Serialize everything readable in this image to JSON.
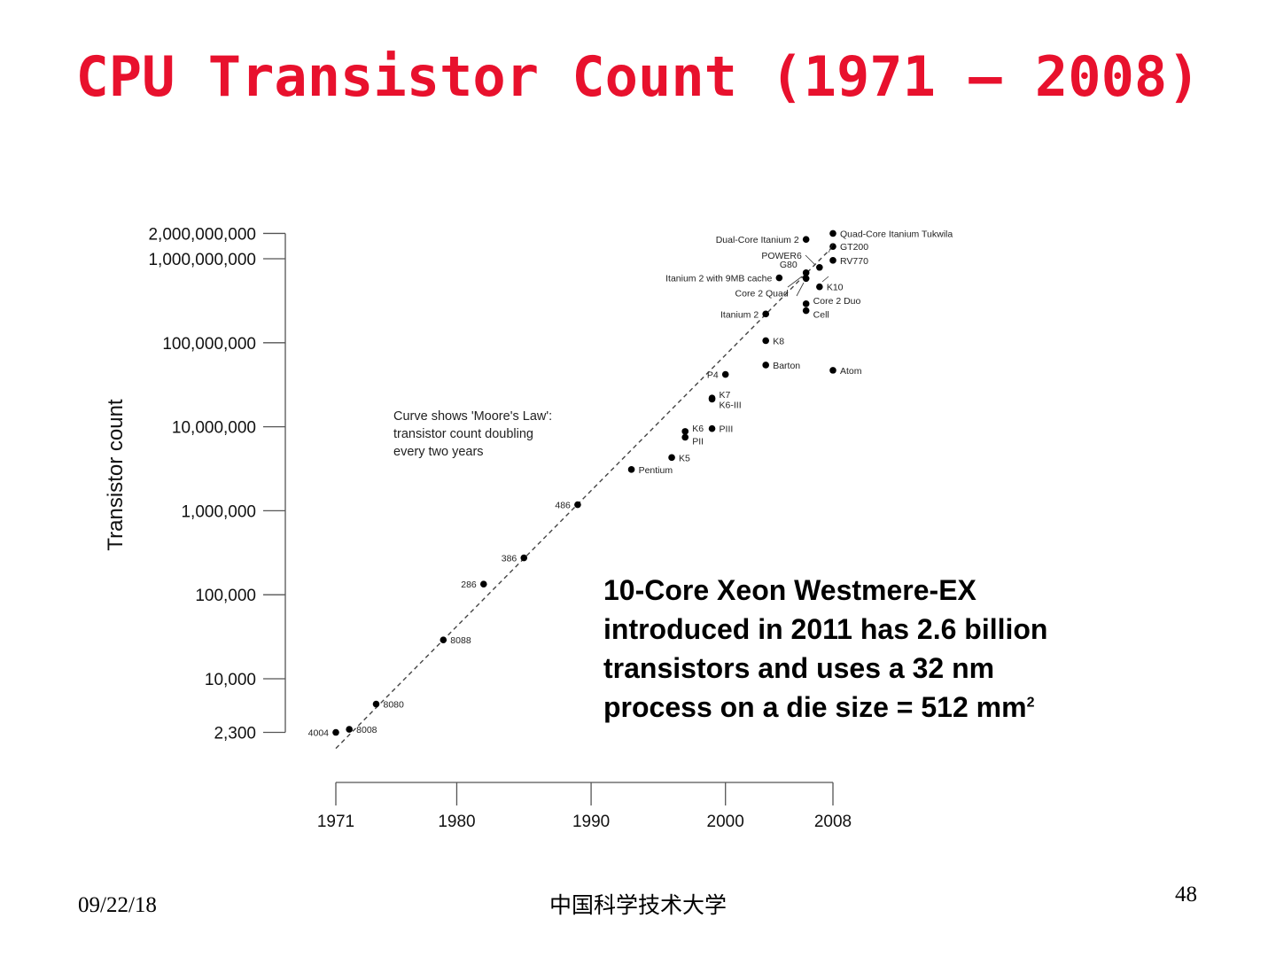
{
  "slide": {
    "title": "CPU Transistor Count (1971 – 2008)",
    "callout": {
      "lines": [
        "10-Core Xeon Westmere-EX",
        "introduced in 2011 has 2.6 billion",
        "transistors and uses a 32 nm"
      ],
      "last_line": "process on a die size = 512 mm",
      "superscript": "2"
    },
    "footer": {
      "date": "09/22/18",
      "center": "中国科学技术大学",
      "page": "48"
    }
  },
  "chart_data": {
    "type": "scatter",
    "ylabel": "Transistor count",
    "yscale": "log",
    "annotation": [
      "Curve shows 'Moore's Law':",
      "transistor count doubling",
      "every two years"
    ],
    "x_ticks": [
      "1971",
      "1980",
      "1990",
      "2000",
      "2008"
    ],
    "y_ticks": [
      {
        "value": 2000000000,
        "label": "2,000,000,000"
      },
      {
        "value": 1000000000,
        "label": "1,000,000,000"
      },
      {
        "value": 100000000,
        "label": "100,000,000"
      },
      {
        "value": 10000000,
        "label": "10,000,000"
      },
      {
        "value": 1000000,
        "label": "1,000,000"
      },
      {
        "value": 100000,
        "label": "100,000"
      },
      {
        "value": 10000,
        "label": "10,000"
      },
      {
        "value": 2300,
        "label": "2,300"
      }
    ],
    "trend": {
      "x": [
        1971,
        2008
      ],
      "y": [
        1800,
        1400000000
      ],
      "style": "dashed"
    },
    "points": [
      {
        "label": "4004",
        "year": 1971,
        "count": 2300,
        "side": "left"
      },
      {
        "label": "8008",
        "year": 1972,
        "count": 2500,
        "side": "right"
      },
      {
        "label": "8080",
        "year": 1974,
        "count": 5000,
        "side": "right"
      },
      {
        "label": "8088",
        "year": 1979,
        "count": 29000,
        "side": "right"
      },
      {
        "label": "286",
        "year": 1982,
        "count": 134000,
        "side": "left"
      },
      {
        "label": "386",
        "year": 1985,
        "count": 275000,
        "side": "left"
      },
      {
        "label": "486",
        "year": 1989,
        "count": 1180000,
        "side": "left"
      },
      {
        "label": "Pentium",
        "year": 1993,
        "count": 3100000,
        "side": "right"
      },
      {
        "label": "K5",
        "year": 1996,
        "count": 4300000,
        "side": "right"
      },
      {
        "label": "K6",
        "year": 1997,
        "count": 8800000,
        "side": "right"
      },
      {
        "label": "PII",
        "year": 1997,
        "count": 7500000,
        "side": "right"
      },
      {
        "label": "PIII",
        "year": 1999,
        "count": 9500000,
        "side": "right"
      },
      {
        "label": "K7",
        "year": 1999,
        "count": 22000000,
        "side": "right"
      },
      {
        "label": "K6-III",
        "year": 1999,
        "count": 21300000,
        "side": "right"
      },
      {
        "label": "P4",
        "year": 2000,
        "count": 42000000,
        "side": "left"
      },
      {
        "label": "Barton",
        "year": 2003,
        "count": 54300000,
        "side": "right"
      },
      {
        "label": "K8",
        "year": 2003,
        "count": 105900000,
        "side": "right"
      },
      {
        "label": "Itanium 2",
        "year": 2003,
        "count": 220000000,
        "side": "left"
      },
      {
        "label": "Itanium 2 with 9MB cache",
        "year": 2004,
        "count": 592000000,
        "side": "left"
      },
      {
        "label": "Atom",
        "year": 2008,
        "count": 47000000,
        "side": "right"
      },
      {
        "label": "Cell",
        "year": 2006,
        "count": 241000000,
        "side": "right"
      },
      {
        "label": "Core 2 Duo",
        "year": 2006,
        "count": 291000000,
        "side": "right"
      },
      {
        "label": "Core 2 Quad",
        "year": 2006,
        "count": 582000000,
        "side": "left"
      },
      {
        "label": "G80",
        "year": 2006,
        "count": 681000000,
        "side": "left"
      },
      {
        "label": "K10",
        "year": 2007,
        "count": 463000000,
        "side": "right"
      },
      {
        "label": "POWER6",
        "year": 2007,
        "count": 789000000,
        "side": "left"
      },
      {
        "label": "Dual-Core Itanium 2",
        "year": 2006,
        "count": 1700000000,
        "side": "left"
      },
      {
        "label": "RV770",
        "year": 2008,
        "count": 956000000,
        "side": "right"
      },
      {
        "label": "GT200",
        "year": 2008,
        "count": 1400000000,
        "side": "right"
      },
      {
        "label": "Quad-Core Itanium Tukwila",
        "year": 2008,
        "count": 2000000000,
        "side": "right"
      }
    ]
  }
}
